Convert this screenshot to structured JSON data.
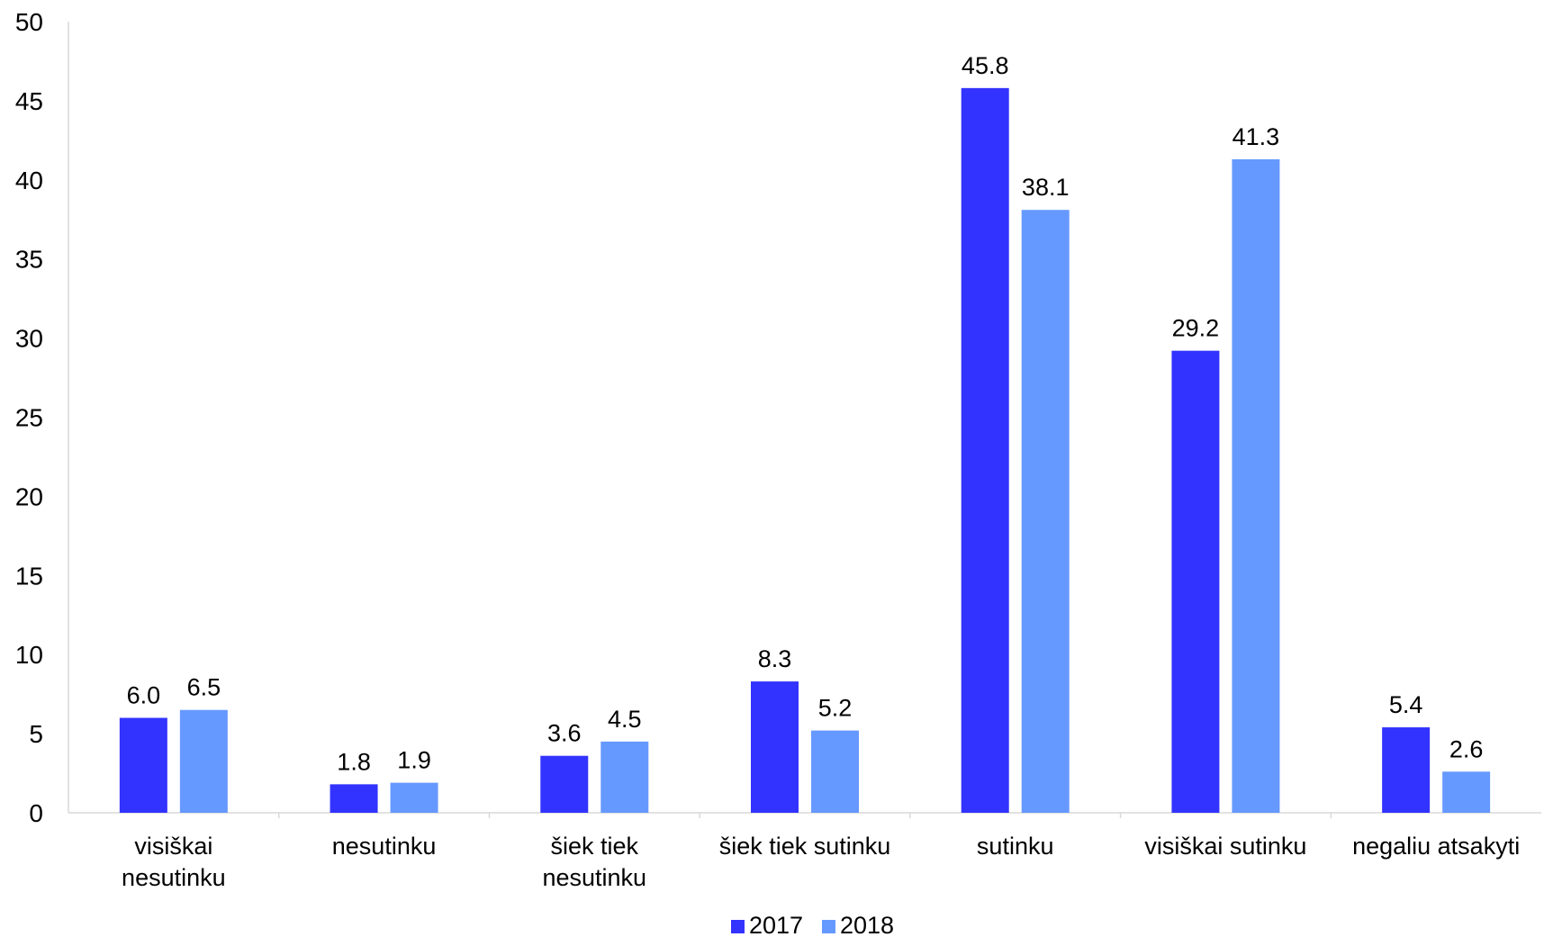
{
  "chart_data": {
    "type": "bar",
    "categories": [
      "visiškai nesutinku",
      "nesutinku",
      "šiek tiek nesutinku",
      "šiek tiek sutinku",
      "sutinku",
      "visiškai sutinku",
      "negaliu atsakyti"
    ],
    "category_lines": [
      [
        "visiškai",
        "nesutinku"
      ],
      [
        "nesutinku"
      ],
      [
        "šiek tiek",
        "nesutinku"
      ],
      [
        "šiek tiek sutinku"
      ],
      [
        "sutinku"
      ],
      [
        "visiškai sutinku"
      ],
      [
        "negaliu atsakyti"
      ]
    ],
    "series": [
      {
        "name": "2017",
        "color": "#3333ff",
        "values": [
          6.0,
          1.8,
          3.6,
          8.3,
          45.8,
          29.2,
          5.4
        ]
      },
      {
        "name": "2018",
        "color": "#6699ff",
        "values": [
          6.5,
          1.9,
          4.5,
          5.2,
          38.1,
          41.3,
          2.6
        ]
      }
    ],
    "ylim": [
      0,
      50
    ],
    "yticks": [
      0,
      5,
      10,
      15,
      20,
      25,
      30,
      35,
      40,
      45,
      50
    ],
    "value_format_decimals": 1,
    "grid": false,
    "legend_position": "bottom",
    "title": "",
    "xlabel": "",
    "ylabel": ""
  }
}
